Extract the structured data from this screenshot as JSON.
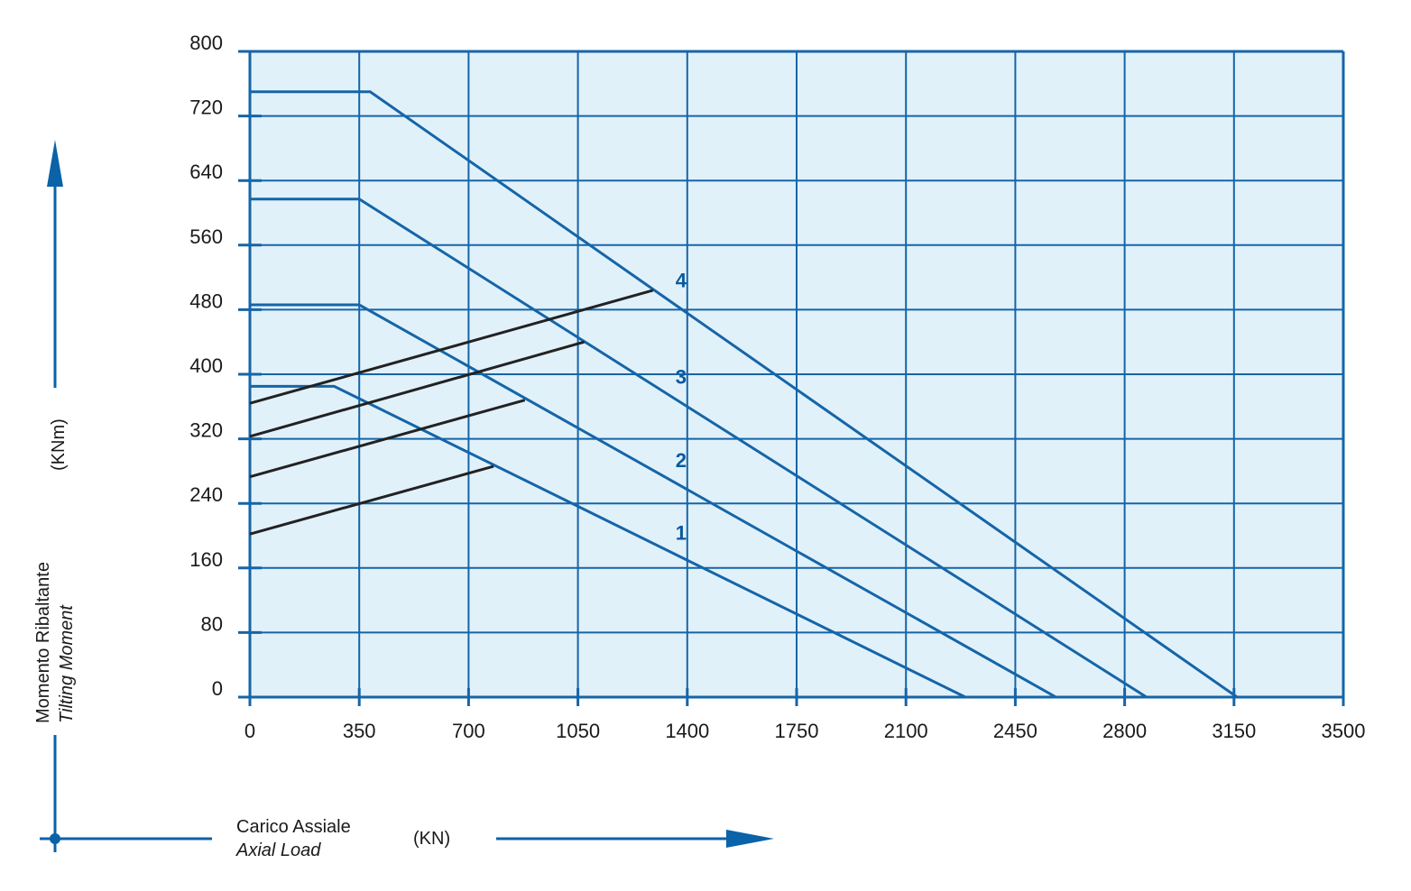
{
  "colors": {
    "plot_bg": "#e1f1fa",
    "grid": "#1565a8",
    "curve": "#1565a8",
    "limit_line": "#222222",
    "arrow": "#0a62a8"
  },
  "chart_data": {
    "type": "line",
    "title": "",
    "xlabel_it": "Carico Assiale",
    "xlabel_en": "Axial Load",
    "xunit": "(KN)",
    "ylabel_it": "Momento Ribaltante",
    "ylabel_en": "Tilting Moment",
    "yunit": "(KNm)",
    "xlim": [
      0,
      3500
    ],
    "ylim": [
      0,
      800
    ],
    "x_ticks": [
      "0",
      "350",
      "700",
      "1050",
      "1400",
      "1750",
      "2100",
      "2450",
      "2800",
      "3150",
      "3500"
    ],
    "y_ticks": [
      "0",
      "80",
      "160",
      "240",
      "320",
      "400",
      "480",
      "560",
      "640",
      "720",
      "800"
    ],
    "grid": true,
    "series": [
      {
        "name": "1",
        "label_at": [
          1380,
          195
        ],
        "points": [
          [
            0,
            385
          ],
          [
            270,
            385
          ],
          [
            2290,
            0
          ]
        ]
      },
      {
        "name": "2",
        "label_at": [
          1380,
          285
        ],
        "points": [
          [
            0,
            486
          ],
          [
            350,
            486
          ],
          [
            2580,
            0
          ]
        ]
      },
      {
        "name": "3",
        "label_at": [
          1380,
          388
        ],
        "points": [
          [
            0,
            617
          ],
          [
            350,
            617
          ],
          [
            2870,
            0
          ]
        ]
      },
      {
        "name": "4",
        "label_at": [
          1380,
          508
        ],
        "points": [
          [
            0,
            750
          ],
          [
            385,
            750
          ],
          [
            3160,
            0
          ]
        ]
      }
    ],
    "limit_lines": [
      {
        "points": [
          [
            0,
            202
          ],
          [
            780,
            286
          ]
        ]
      },
      {
        "points": [
          [
            0,
            273
          ],
          [
            880,
            368
          ]
        ]
      },
      {
        "points": [
          [
            0,
            323
          ],
          [
            1070,
            440
          ]
        ]
      },
      {
        "points": [
          [
            0,
            364
          ],
          [
            1290,
            504
          ]
        ]
      }
    ]
  }
}
